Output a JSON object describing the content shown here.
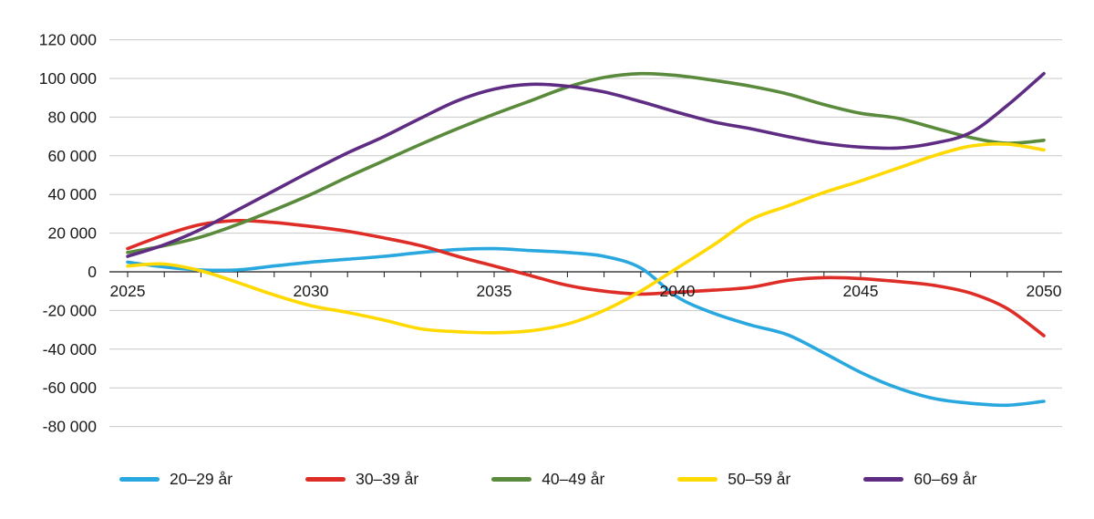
{
  "chart_data": {
    "type": "line",
    "title": "",
    "xlabel": "",
    "ylabel": "",
    "x": [
      2025,
      2026,
      2027,
      2028,
      2029,
      2030,
      2031,
      2032,
      2033,
      2034,
      2035,
      2036,
      2037,
      2038,
      2039,
      2040,
      2041,
      2042,
      2043,
      2044,
      2045,
      2046,
      2047,
      2048,
      2049,
      2050
    ],
    "xticks": [
      2025,
      2030,
      2035,
      2040,
      2045,
      2050
    ],
    "yticks": [
      120000,
      100000,
      80000,
      60000,
      40000,
      20000,
      0,
      -20000,
      -40000,
      -60000,
      -80000
    ],
    "ytick_labels": [
      "120 000",
      "100 000",
      "80 000",
      "60 000",
      "40 000",
      "20 000",
      "0",
      "-20 000",
      "-40 000",
      "-60 000",
      "-80 000"
    ],
    "ylim": [
      -80000,
      120000
    ],
    "grid": "horizontal-only",
    "legend_position": "bottom",
    "axis_line_color": "#1a1a1a",
    "grid_color": "#c9c9c9",
    "series": [
      {
        "name": "20–29 år",
        "color": "#29A8E0",
        "values": [
          5000,
          2500,
          1000,
          1000,
          3000,
          5000,
          6500,
          8000,
          10000,
          11500,
          12000,
          11000,
          10000,
          8000,
          2000,
          -13000,
          -21500,
          -27500,
          -32500,
          -42000,
          -52000,
          -60000,
          -65500,
          -68000,
          -69000,
          -67000
        ]
      },
      {
        "name": "30–39 år",
        "color": "#DE2D26",
        "values": [
          12000,
          19000,
          24500,
          26500,
          25500,
          23500,
          21000,
          17500,
          13500,
          8000,
          3000,
          -2000,
          -7000,
          -10000,
          -11500,
          -10500,
          -9500,
          -8000,
          -4500,
          -3000,
          -3500,
          -5000,
          -7000,
          -11000,
          -19000,
          -33000
        ]
      },
      {
        "name": "40–49 år",
        "color": "#5A8A3B",
        "values": [
          10000,
          13500,
          18000,
          24500,
          32000,
          40000,
          49000,
          57500,
          66000,
          74000,
          81500,
          88500,
          95500,
          100500,
          102500,
          101500,
          99000,
          96000,
          92000,
          86500,
          82000,
          79500,
          74500,
          69500,
          66500,
          68000
        ]
      },
      {
        "name": "50–59 år",
        "color": "#FFD900",
        "values": [
          3000,
          4000,
          500,
          -5500,
          -12000,
          -17500,
          -21000,
          -25000,
          -29500,
          -31000,
          -31500,
          -30500,
          -27000,
          -20000,
          -10000,
          2000,
          14000,
          27000,
          34000,
          41000,
          47000,
          53500,
          60000,
          65000,
          66000,
          63000
        ]
      },
      {
        "name": "60–69 år",
        "color": "#5F2C83",
        "values": [
          8000,
          14000,
          22000,
          32000,
          42000,
          52000,
          61500,
          70000,
          79500,
          88500,
          94500,
          97000,
          96000,
          93000,
          88000,
          82500,
          77500,
          74000,
          70000,
          66500,
          64500,
          64000,
          66500,
          72000,
          86000,
          102500
        ]
      }
    ]
  }
}
